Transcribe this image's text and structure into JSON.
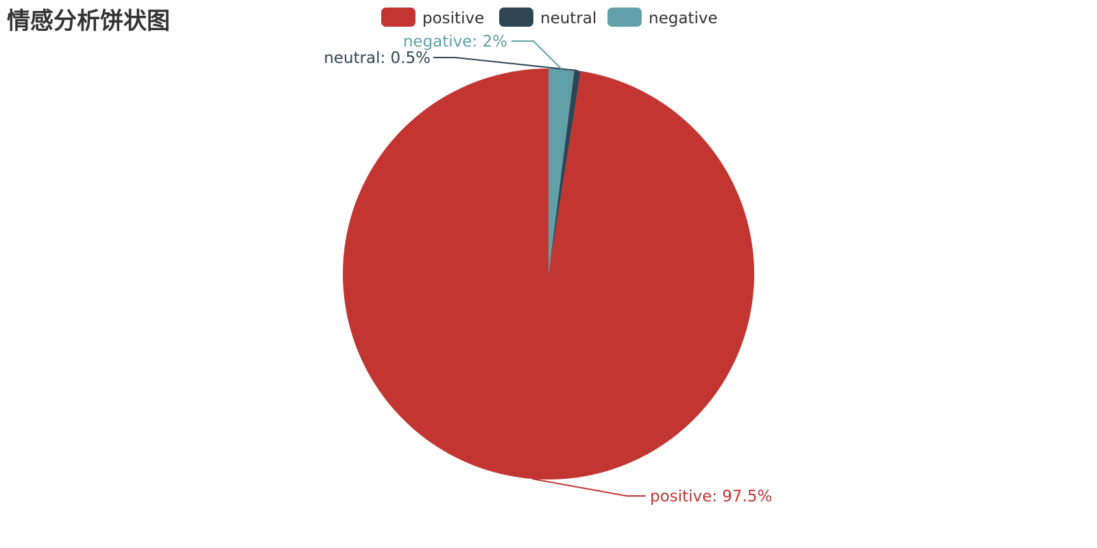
{
  "chart_data": {
    "type": "pie",
    "title": "情感分析饼状图",
    "legend": {
      "placement": "top-center",
      "items": [
        "positive",
        "neutral",
        "negative"
      ]
    },
    "slices": [
      {
        "name": "positive",
        "value": 97.5,
        "label": "positive: 97.5%",
        "color": "#c23531"
      },
      {
        "name": "neutral",
        "value": 0.5,
        "label": "neutral: 0.5%",
        "color": "#2f4554"
      },
      {
        "name": "negative",
        "value": 2,
        "label": "negative: 2%",
        "color": "#61a0a8"
      }
    ]
  }
}
